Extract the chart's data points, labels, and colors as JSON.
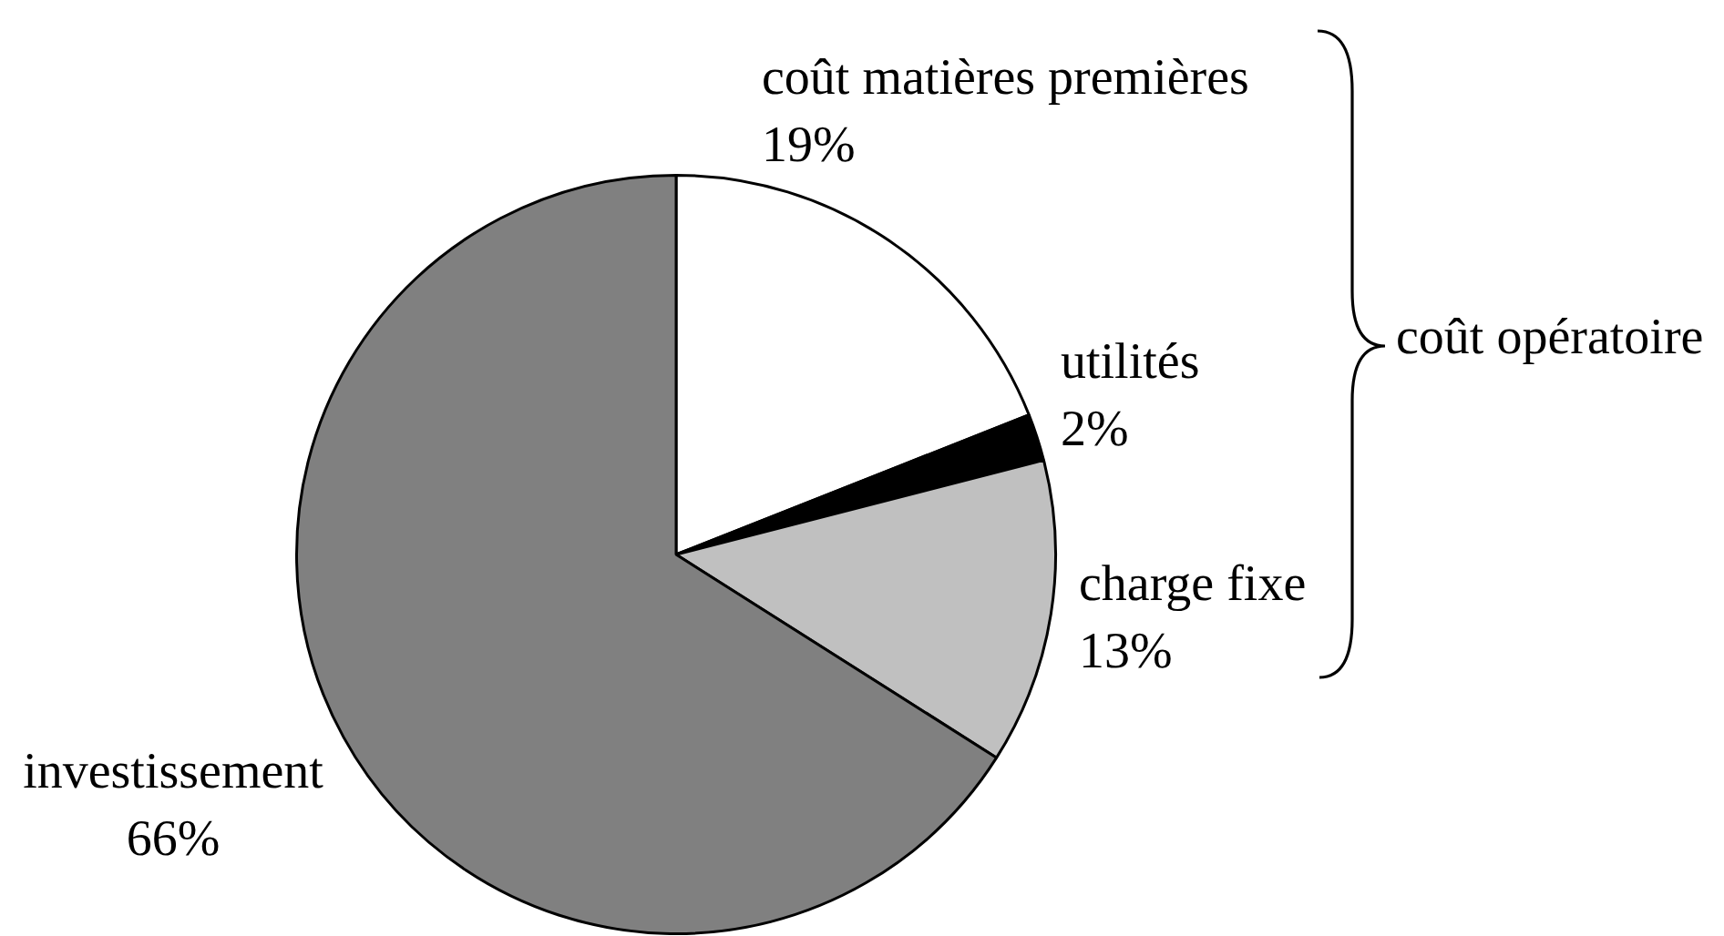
{
  "chart_data": {
    "type": "pie",
    "categories": [
      "coût matières premières",
      "utilités",
      "charge fixe",
      "investissement"
    ],
    "values": [
      19,
      2,
      13,
      66
    ],
    "value_labels": [
      "19%",
      "2%",
      "13%",
      "66%"
    ],
    "colors": [
      "#ffffff",
      "#000000",
      "#c0c0c0",
      "#808080"
    ],
    "legend": false,
    "annotations": [
      "coût opératoire"
    ]
  }
}
